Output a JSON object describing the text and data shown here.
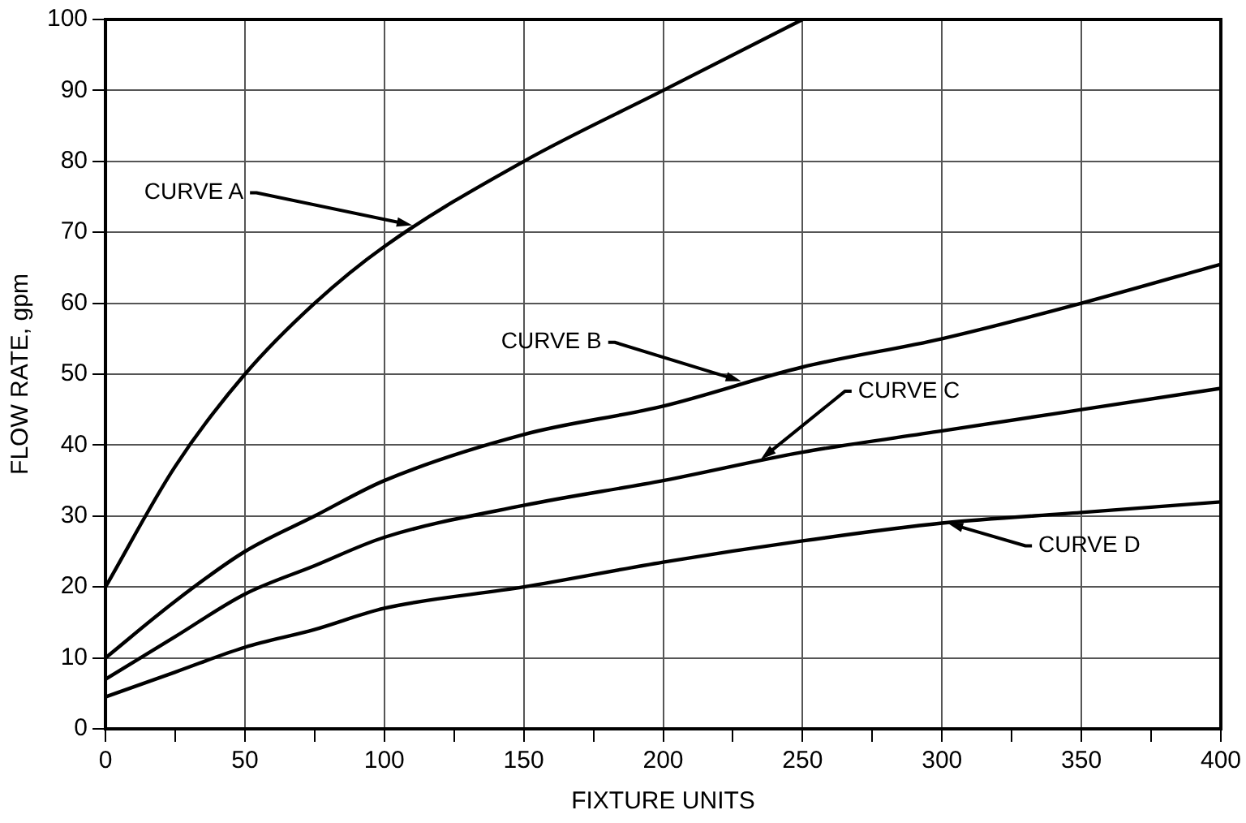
{
  "chart_data": {
    "type": "line",
    "xlabel": "FIXTURE UNITS",
    "ylabel": "FLOW RATE, gpm",
    "x": [
      0,
      25,
      50,
      75,
      100,
      150,
      200,
      250,
      300,
      350,
      400
    ],
    "series": [
      {
        "color": "#000000",
        "x": [
          0,
          25,
          50,
          75,
          100,
          150,
          200,
          250
        ],
        "values": [
          20,
          37,
          50,
          60,
          68,
          80,
          90,
          100
        ]
      },
      {
        "color": "#000000",
        "values": [
          10,
          18,
          25,
          30,
          35,
          41.5,
          45.5,
          51,
          55,
          60,
          65.5
        ]
      },
      {
        "color": "#000000",
        "values": [
          7,
          13,
          19,
          23,
          27,
          31.5,
          35,
          39,
          42,
          45,
          48
        ]
      },
      {
        "color": "#000000",
        "values": [
          4.5,
          8,
          11.5,
          14,
          17,
          20,
          23.5,
          26.5,
          29,
          30.5,
          32
        ]
      }
    ],
    "annotations": [
      {
        "text": "CURVE A",
        "x": 110,
        "y": 71
      },
      {
        "text": "CURVE B",
        "x": 228,
        "y": 49
      },
      {
        "text": "CURVE C",
        "x": 235,
        "y": 38
      },
      {
        "text": "CURVE D",
        "x": 302,
        "y": 29
      }
    ],
    "xlim": [
      0,
      400
    ],
    "ylim": [
      0,
      100
    ],
    "xticks": [
      0,
      {
        "value": 25,
        "label": null
      },
      50,
      {
        "value": 75,
        "label": null
      },
      100,
      {
        "value": 125,
        "label": null
      },
      150,
      {
        "value": 175,
        "label": null
      },
      200,
      {
        "value": 225,
        "label": null
      },
      250,
      {
        "value": 275,
        "label": null
      },
      300,
      {
        "value": 325,
        "label": null
      },
      350,
      {
        "value": 375,
        "label": null
      },
      400
    ],
    "yticks": [
      0,
      10,
      20,
      30,
      40,
      50,
      60,
      70,
      80,
      90,
      100
    ],
    "grid": true,
    "marker": "none",
    "line_style": "solid"
  }
}
